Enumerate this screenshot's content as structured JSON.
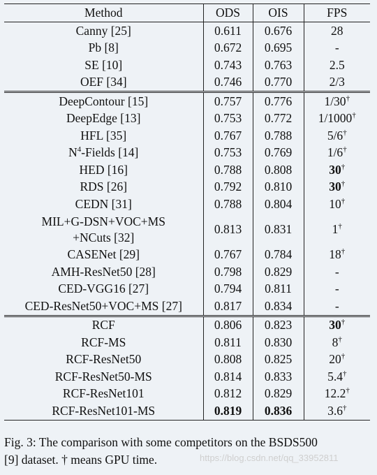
{
  "headers": {
    "method": "Method",
    "ods": "ODS",
    "ois": "OIS",
    "fps": "FPS"
  },
  "groups": [
    [
      {
        "method": "Canny [25]",
        "ods": "0.611",
        "ois": "0.676",
        "fps": "28"
      },
      {
        "method": "Pb [8]",
        "ods": "0.672",
        "ois": "0.695",
        "fps": "-"
      },
      {
        "method": "SE [10]",
        "ods": "0.743",
        "ois": "0.763",
        "fps": "2.5"
      },
      {
        "method": "OEF [34]",
        "ods": "0.746",
        "ois": "0.770",
        "fps": "2/3"
      }
    ],
    [
      {
        "method": "DeepContour [15]",
        "ods": "0.757",
        "ois": "0.776",
        "fps": "1/30",
        "fps_sup": "†"
      },
      {
        "method": "DeepEdge [13]",
        "ods": "0.753",
        "ois": "0.772",
        "fps": "1/1000",
        "fps_sup": "†"
      },
      {
        "method": "HFL [35]",
        "ods": "0.767",
        "ois": "0.788",
        "fps": "5/6",
        "fps_sup": "†"
      },
      {
        "method_pre": "N",
        "method_sup": "4",
        "method": "-Fields [14]",
        "ods": "0.753",
        "ois": "0.769",
        "fps": "1/6",
        "fps_sup": "†"
      },
      {
        "method": "HED [16]",
        "ods": "0.788",
        "ois": "0.808",
        "fps": "30",
        "fps_sup": "†",
        "fps_bold": true
      },
      {
        "method": "RDS [26]",
        "ods": "0.792",
        "ois": "0.810",
        "fps": "30",
        "fps_sup": "†",
        "fps_bold": true
      },
      {
        "method": "CEDN [31]",
        "ods": "0.788",
        "ois": "0.804",
        "fps": "10",
        "fps_sup": "†"
      },
      {
        "method": "MIL+G-DSN+VOC+MS",
        "method_line2": "+NCuts [32]",
        "ods": "0.813",
        "ois": "0.831",
        "fps": "1",
        "fps_sup": "†"
      },
      {
        "method": "CASENet [29]",
        "ods": "0.767",
        "ois": "0.784",
        "fps": "18",
        "fps_sup": "†"
      },
      {
        "method": "AMH-ResNet50 [28]",
        "ods": "0.798",
        "ois": "0.829",
        "fps": "-"
      },
      {
        "method": "CED-VGG16 [27]",
        "ods": "0.794",
        "ois": "0.811",
        "fps": "-"
      },
      {
        "method": "CED-ResNet50+VOC+MS [27]",
        "ods": "0.817",
        "ois": "0.834",
        "fps": "-"
      }
    ],
    [
      {
        "method": "RCF",
        "ods": "0.806",
        "ois": "0.823",
        "fps": "30",
        "fps_sup": "†",
        "fps_bold": true
      },
      {
        "method": "RCF-MS",
        "ods": "0.811",
        "ois": "0.830",
        "fps": "8",
        "fps_sup": "†"
      },
      {
        "method": "RCF-ResNet50",
        "ods": "0.808",
        "ois": "0.825",
        "fps": "20",
        "fps_sup": "†"
      },
      {
        "method": "RCF-ResNet50-MS",
        "ods": "0.814",
        "ois": "0.833",
        "fps": "5.4",
        "fps_sup": "†"
      },
      {
        "method": "RCF-ResNet101",
        "ods": "0.812",
        "ois": "0.829",
        "fps": "12.2",
        "fps_sup": "†"
      },
      {
        "method": "RCF-ResNet101-MS",
        "ods": "0.819",
        "ois": "0.836",
        "fps": "3.6",
        "fps_sup": "†",
        "ods_bold": true,
        "ois_bold": true
      }
    ]
  ],
  "caption": {
    "line1": "Fig. 3: The comparison with some competitors on the BSDS500",
    "line2": "[9] dataset. † means GPU time."
  },
  "watermark": "https://blog.csdn.net/qq_33952811",
  "colors": {
    "background": "#eef2f6",
    "text": "#111111",
    "rule": "#222222",
    "watermark": "#cfcfcf"
  }
}
